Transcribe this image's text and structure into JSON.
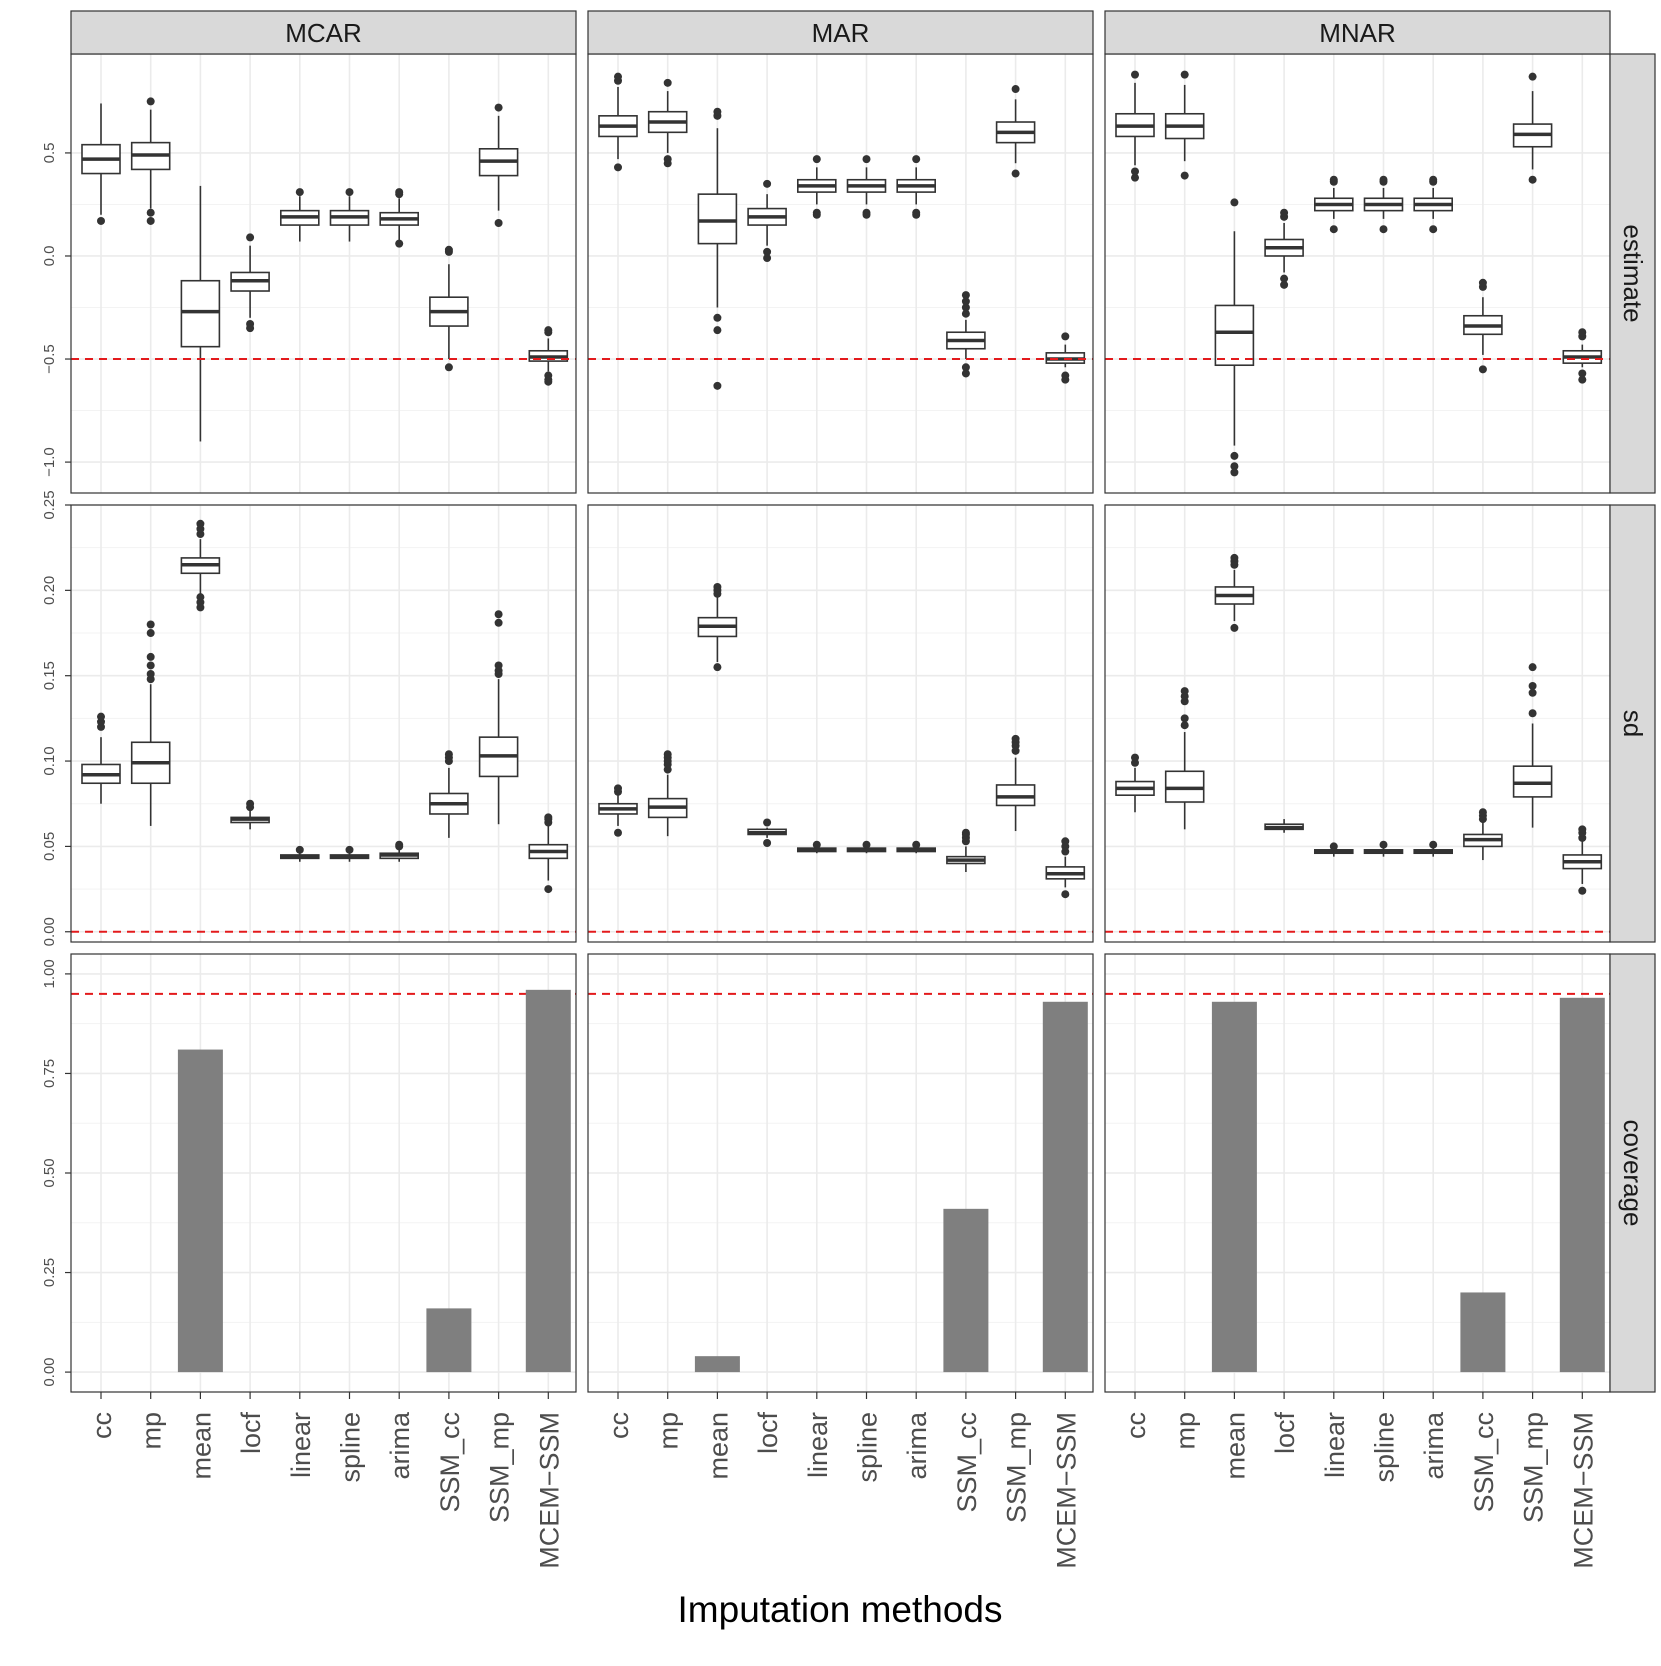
{
  "chart_data": {
    "type": "faceted-box-bar",
    "xlabel": "Imputation methods",
    "categories": [
      "cc",
      "mp",
      "mean",
      "locf",
      "linear",
      "spline",
      "arima",
      "SSM_cc",
      "SSM_mp",
      "MCEM−SSM"
    ],
    "columns": [
      "MCAR",
      "MAR",
      "MNAR"
    ],
    "rows": [
      {
        "name": "estimate",
        "kind": "box",
        "ylim": [
          -1.15,
          0.98
        ],
        "ticks": [
          -1.0,
          -0.5,
          0.0,
          0.5
        ],
        "tick_labels": [
          "−1.0",
          "−0.5",
          "0.0",
          "0.5"
        ],
        "reference_line": -0.5,
        "data": {
          "MCAR": [
            {
              "min": 0.2,
              "q1": 0.4,
              "median": 0.47,
              "q3": 0.54,
              "max": 0.74,
              "outliers": [
                0.17
              ]
            },
            {
              "min": 0.23,
              "q1": 0.42,
              "median": 0.49,
              "q3": 0.55,
              "max": 0.71,
              "outliers": [
                0.21,
                0.17,
                0.75
              ]
            },
            {
              "min": -0.9,
              "q1": -0.44,
              "median": -0.27,
              "q3": -0.12,
              "max": 0.34,
              "outliers": []
            },
            {
              "min": -0.3,
              "q1": -0.17,
              "median": -0.12,
              "q3": -0.08,
              "max": 0.05,
              "outliers": [
                -0.33,
                -0.35,
                0.09
              ]
            },
            {
              "min": 0.07,
              "q1": 0.15,
              "median": 0.19,
              "q3": 0.22,
              "max": 0.29,
              "outliers": [
                0.31
              ]
            },
            {
              "min": 0.07,
              "q1": 0.15,
              "median": 0.19,
              "q3": 0.22,
              "max": 0.29,
              "outliers": [
                0.31
              ]
            },
            {
              "min": 0.07,
              "q1": 0.15,
              "median": 0.18,
              "q3": 0.21,
              "max": 0.28,
              "outliers": [
                0.3,
                0.31,
                0.06
              ]
            },
            {
              "min": -0.5,
              "q1": -0.34,
              "median": -0.27,
              "q3": -0.2,
              "max": -0.04,
              "outliers": [
                -0.54,
                0.02,
                0.03
              ]
            },
            {
              "min": 0.22,
              "q1": 0.39,
              "median": 0.46,
              "q3": 0.52,
              "max": 0.68,
              "outliers": [
                0.16,
                0.72
              ]
            },
            {
              "min": -0.56,
              "q1": -0.51,
              "median": -0.49,
              "q3": -0.46,
              "max": -0.4,
              "outliers": [
                -0.58,
                -0.6,
                -0.61,
                -0.37,
                -0.36
              ]
            }
          ],
          "MAR": [
            {
              "min": 0.47,
              "q1": 0.58,
              "median": 0.63,
              "q3": 0.68,
              "max": 0.82,
              "outliers": [
                0.43,
                0.85,
                0.87
              ]
            },
            {
              "min": 0.5,
              "q1": 0.6,
              "median": 0.65,
              "q3": 0.7,
              "max": 0.8,
              "outliers": [
                0.45,
                0.47,
                0.84
              ]
            },
            {
              "min": -0.25,
              "q1": 0.06,
              "median": 0.17,
              "q3": 0.3,
              "max": 0.62,
              "outliers": [
                -0.3,
                -0.36,
                -0.63,
                0.68,
                0.7
              ]
            },
            {
              "min": 0.05,
              "q1": 0.15,
              "median": 0.19,
              "q3": 0.23,
              "max": 0.3,
              "outliers": [
                0.02,
                -0.01,
                0.35
              ]
            },
            {
              "min": 0.25,
              "q1": 0.31,
              "median": 0.34,
              "q3": 0.37,
              "max": 0.43,
              "outliers": [
                0.21,
                0.2,
                0.47
              ]
            },
            {
              "min": 0.25,
              "q1": 0.31,
              "median": 0.34,
              "q3": 0.37,
              "max": 0.43,
              "outliers": [
                0.21,
                0.2,
                0.47
              ]
            },
            {
              "min": 0.25,
              "q1": 0.31,
              "median": 0.34,
              "q3": 0.37,
              "max": 0.43,
              "outliers": [
                0.21,
                0.2,
                0.47
              ]
            },
            {
              "min": -0.5,
              "q1": -0.45,
              "median": -0.41,
              "q3": -0.37,
              "max": -0.31,
              "outliers": [
                -0.54,
                -0.57,
                -0.28,
                -0.25,
                -0.22,
                -0.19
              ]
            },
            {
              "min": 0.45,
              "q1": 0.55,
              "median": 0.6,
              "q3": 0.65,
              "max": 0.76,
              "outliers": [
                0.4,
                0.81
              ]
            },
            {
              "min": -0.54,
              "q1": -0.52,
              "median": -0.5,
              "q3": -0.47,
              "max": -0.43,
              "outliers": [
                -0.58,
                -0.6,
                -0.39
              ]
            }
          ],
          "MNAR": [
            {
              "min": 0.44,
              "q1": 0.58,
              "median": 0.63,
              "q3": 0.69,
              "max": 0.84,
              "outliers": [
                0.38,
                0.41,
                0.88
              ]
            },
            {
              "min": 0.46,
              "q1": 0.57,
              "median": 0.63,
              "q3": 0.69,
              "max": 0.83,
              "outliers": [
                0.39,
                0.88
              ]
            },
            {
              "min": -0.92,
              "q1": -0.53,
              "median": -0.37,
              "q3": -0.24,
              "max": 0.12,
              "outliers": [
                -0.97,
                -1.02,
                -1.05,
                0.26
              ]
            },
            {
              "min": -0.08,
              "q1": 0.0,
              "median": 0.04,
              "q3": 0.08,
              "max": 0.16,
              "outliers": [
                -0.11,
                -0.14,
                0.19,
                0.21
              ]
            },
            {
              "min": 0.18,
              "q1": 0.22,
              "median": 0.25,
              "q3": 0.28,
              "max": 0.33,
              "outliers": [
                0.13,
                0.36,
                0.37
              ]
            },
            {
              "min": 0.18,
              "q1": 0.22,
              "median": 0.25,
              "q3": 0.28,
              "max": 0.33,
              "outliers": [
                0.13,
                0.36,
                0.37
              ]
            },
            {
              "min": 0.18,
              "q1": 0.22,
              "median": 0.25,
              "q3": 0.28,
              "max": 0.33,
              "outliers": [
                0.13,
                0.36,
                0.37
              ]
            },
            {
              "min": -0.48,
              "q1": -0.38,
              "median": -0.34,
              "q3": -0.29,
              "max": -0.2,
              "outliers": [
                -0.55,
                -0.15,
                -0.13
              ]
            },
            {
              "min": 0.42,
              "q1": 0.53,
              "median": 0.59,
              "q3": 0.64,
              "max": 0.8,
              "outliers": [
                0.37,
                0.87
              ]
            },
            {
              "min": -0.54,
              "q1": -0.52,
              "median": -0.49,
              "q3": -0.46,
              "max": -0.43,
              "outliers": [
                -0.57,
                -0.6,
                -0.39,
                -0.37
              ]
            }
          ]
        }
      },
      {
        "name": "sd",
        "kind": "box",
        "ylim": [
          -0.006,
          0.25
        ],
        "ticks": [
          0.0,
          0.05,
          0.1,
          0.15,
          0.2,
          0.25
        ],
        "tick_labels": [
          "0.00",
          "0.05",
          "0.10",
          "0.15",
          "0.20",
          "0.25"
        ],
        "reference_line": 0.0,
        "data": {
          "MCAR": [
            {
              "min": 0.075,
              "q1": 0.087,
              "median": 0.092,
              "q3": 0.098,
              "max": 0.114,
              "outliers": [
                0.12,
                0.123,
                0.126
              ]
            },
            {
              "min": 0.062,
              "q1": 0.087,
              "median": 0.099,
              "q3": 0.111,
              "max": 0.145,
              "outliers": [
                0.148,
                0.151,
                0.156,
                0.161,
                0.175,
                0.18
              ]
            },
            {
              "min": 0.198,
              "q1": 0.21,
              "median": 0.215,
              "q3": 0.219,
              "max": 0.23,
              "outliers": [
                0.19,
                0.193,
                0.196,
                0.233,
                0.236,
                0.239
              ]
            },
            {
              "min": 0.06,
              "q1": 0.064,
              "median": 0.066,
              "q3": 0.067,
              "max": 0.071,
              "outliers": [
                0.073,
                0.075
              ]
            },
            {
              "min": 0.041,
              "q1": 0.043,
              "median": 0.044,
              "q3": 0.045,
              "max": 0.046,
              "outliers": [
                0.048
              ]
            },
            {
              "min": 0.041,
              "q1": 0.043,
              "median": 0.044,
              "q3": 0.045,
              "max": 0.046,
              "outliers": [
                0.048
              ]
            },
            {
              "min": 0.041,
              "q1": 0.043,
              "median": 0.045,
              "q3": 0.046,
              "max": 0.048,
              "outliers": [
                0.05,
                0.051
              ]
            },
            {
              "min": 0.055,
              "q1": 0.069,
              "median": 0.075,
              "q3": 0.081,
              "max": 0.096,
              "outliers": [
                0.1,
                0.102,
                0.104
              ]
            },
            {
              "min": 0.063,
              "q1": 0.091,
              "median": 0.103,
              "q3": 0.114,
              "max": 0.148,
              "outliers": [
                0.151,
                0.153,
                0.156,
                0.181,
                0.186
              ]
            },
            {
              "min": 0.03,
              "q1": 0.043,
              "median": 0.047,
              "q3": 0.051,
              "max": 0.062,
              "outliers": [
                0.025,
                0.064,
                0.066,
                0.067
              ]
            }
          ],
          "MAR": [
            {
              "min": 0.062,
              "q1": 0.069,
              "median": 0.072,
              "q3": 0.075,
              "max": 0.08,
              "outliers": [
                0.058,
                0.082,
                0.084
              ]
            },
            {
              "min": 0.056,
              "q1": 0.067,
              "median": 0.073,
              "q3": 0.078,
              "max": 0.092,
              "outliers": [
                0.095,
                0.098,
                0.1,
                0.102,
                0.104
              ]
            },
            {
              "min": 0.158,
              "q1": 0.173,
              "median": 0.179,
              "q3": 0.184,
              "max": 0.196,
              "outliers": [
                0.155,
                0.198,
                0.2,
                0.202
              ]
            },
            {
              "min": 0.055,
              "q1": 0.057,
              "median": 0.058,
              "q3": 0.06,
              "max": 0.061,
              "outliers": [
                0.052,
                0.064
              ]
            },
            {
              "min": 0.046,
              "q1": 0.047,
              "median": 0.048,
              "q3": 0.049,
              "max": 0.05,
              "outliers": [
                0.051
              ]
            },
            {
              "min": 0.046,
              "q1": 0.047,
              "median": 0.048,
              "q3": 0.049,
              "max": 0.05,
              "outliers": [
                0.051
              ]
            },
            {
              "min": 0.046,
              "q1": 0.047,
              "median": 0.048,
              "q3": 0.049,
              "max": 0.05,
              "outliers": [
                0.051
              ]
            },
            {
              "min": 0.035,
              "q1": 0.04,
              "median": 0.042,
              "q3": 0.044,
              "max": 0.05,
              "outliers": [
                0.053,
                0.055,
                0.057,
                0.058
              ]
            },
            {
              "min": 0.059,
              "q1": 0.074,
              "median": 0.079,
              "q3": 0.086,
              "max": 0.102,
              "outliers": [
                0.106,
                0.109,
                0.111,
                0.113
              ]
            },
            {
              "min": 0.026,
              "q1": 0.031,
              "median": 0.034,
              "q3": 0.038,
              "max": 0.044,
              "outliers": [
                0.022,
                0.047,
                0.05,
                0.053
              ]
            }
          ],
          "MNAR": [
            {
              "min": 0.07,
              "q1": 0.08,
              "median": 0.084,
              "q3": 0.088,
              "max": 0.096,
              "outliers": [
                0.099,
                0.102
              ]
            },
            {
              "min": 0.06,
              "q1": 0.076,
              "median": 0.084,
              "q3": 0.094,
              "max": 0.117,
              "outliers": [
                0.121,
                0.125,
                0.135,
                0.138,
                0.141
              ]
            },
            {
              "min": 0.182,
              "q1": 0.192,
              "median": 0.197,
              "q3": 0.202,
              "max": 0.212,
              "outliers": [
                0.178,
                0.215,
                0.217,
                0.219
              ]
            },
            {
              "min": 0.058,
              "q1": 0.06,
              "median": 0.061,
              "q3": 0.063,
              "max": 0.066,
              "outliers": []
            },
            {
              "min": 0.044,
              "q1": 0.046,
              "median": 0.047,
              "q3": 0.048,
              "max": 0.049,
              "outliers": [
                0.05
              ]
            },
            {
              "min": 0.044,
              "q1": 0.046,
              "median": 0.047,
              "q3": 0.048,
              "max": 0.049,
              "outliers": [
                0.051
              ]
            },
            {
              "min": 0.044,
              "q1": 0.046,
              "median": 0.047,
              "q3": 0.048,
              "max": 0.049,
              "outliers": [
                0.051
              ]
            },
            {
              "min": 0.042,
              "q1": 0.05,
              "median": 0.054,
              "q3": 0.057,
              "max": 0.064,
              "outliers": [
                0.066,
                0.068,
                0.07
              ]
            },
            {
              "min": 0.061,
              "q1": 0.079,
              "median": 0.087,
              "q3": 0.097,
              "max": 0.122,
              "outliers": [
                0.128,
                0.14,
                0.144,
                0.155
              ]
            },
            {
              "min": 0.028,
              "q1": 0.037,
              "median": 0.041,
              "q3": 0.045,
              "max": 0.053,
              "outliers": [
                0.024,
                0.055,
                0.058,
                0.06
              ]
            }
          ]
        }
      },
      {
        "name": "coverage",
        "kind": "bar",
        "ylim": [
          -0.05,
          1.05
        ],
        "ticks": [
          0.0,
          0.25,
          0.5,
          0.75,
          1.0
        ],
        "tick_labels": [
          "0.00",
          "0.25",
          "0.50",
          "0.75",
          "1.00"
        ],
        "reference_line": 0.95,
        "bar_color": "#7f7f7f",
        "data": {
          "MCAR": [
            0,
            0,
            0.81,
            0,
            0,
            0,
            0,
            0.16,
            0,
            0.96
          ],
          "MAR": [
            0,
            0,
            0.04,
            0,
            0,
            0,
            0,
            0.41,
            0,
            0.93
          ],
          "MNAR": [
            0,
            0,
            0.93,
            0,
            0,
            0,
            0,
            0.2,
            0,
            0.94
          ]
        }
      }
    ],
    "colors": {
      "reference_line": "#e31a1c",
      "strip_fill": "#d9d9d9",
      "grid": "#ebebeb",
      "box_line": "#333333"
    }
  }
}
